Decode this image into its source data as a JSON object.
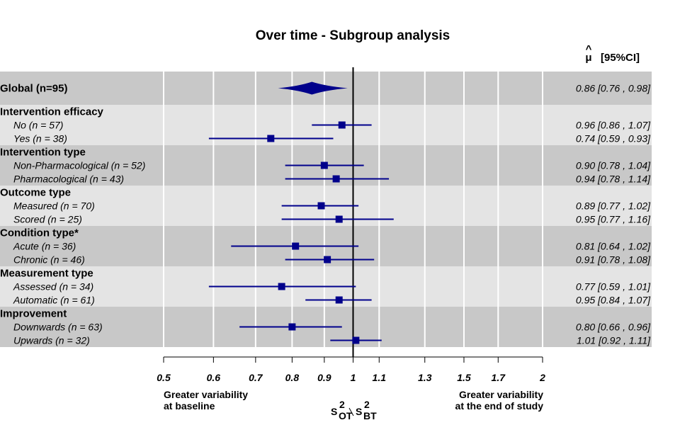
{
  "chart_data": {
    "type": "forest",
    "title": "Over time - Subgroup analysis",
    "estimate_header": "[95%CI]",
    "estimate_symbol": "μ",
    "x_scale": "log",
    "xlim": [
      0.5,
      2
    ],
    "reference_line": 1,
    "x_ticks": [
      "0.5",
      "0.6",
      "0.7",
      "0.8",
      "0.9",
      "1",
      "1.1",
      "1.3",
      "1.5",
      "1.7",
      "2"
    ],
    "x_label": {
      "base": "S",
      "num_sub": "OT",
      "den_sub": "BT",
      "sup": "2"
    },
    "left_note": [
      "Greater variability",
      "at baseline"
    ],
    "right_note": [
      "Greater variability",
      "at the end of study"
    ],
    "marker_color": "#00008B",
    "band_colors": [
      "#C8C8C8",
      "#E4E4E4"
    ],
    "rows": [
      {
        "kind": "global",
        "label": "Global (n=95)",
        "est": 0.86,
        "lo": 0.76,
        "hi": 0.98,
        "text": "0.86  [0.76 , 0.98]",
        "band": 0
      },
      {
        "kind": "group",
        "label": "Intervention efficacy",
        "band": 1
      },
      {
        "kind": "item",
        "label": "No (n = 57)",
        "est": 0.96,
        "lo": 0.86,
        "hi": 1.07,
        "text": "0.96  [0.86 , 1.07]",
        "band": 1
      },
      {
        "kind": "item",
        "label": "Yes (n = 38)",
        "est": 0.74,
        "lo": 0.59,
        "hi": 0.93,
        "text": "0.74  [0.59 , 0.93]",
        "band": 1
      },
      {
        "kind": "group",
        "label": "Intervention type",
        "band": 0
      },
      {
        "kind": "item",
        "label": "Non-Pharmacological (n = 52)",
        "est": 0.9,
        "lo": 0.78,
        "hi": 1.04,
        "text": "0.90  [0.78 , 1.04]",
        "band": 0
      },
      {
        "kind": "item",
        "label": "Pharmacological (n = 43)",
        "est": 0.94,
        "lo": 0.78,
        "hi": 1.14,
        "text": "0.94  [0.78 , 1.14]",
        "band": 0
      },
      {
        "kind": "group",
        "label": "Outcome type",
        "band": 1
      },
      {
        "kind": "item",
        "label": "Measured (n = 70)",
        "est": 0.89,
        "lo": 0.77,
        "hi": 1.02,
        "text": "0.89  [0.77 , 1.02]",
        "band": 1
      },
      {
        "kind": "item",
        "label": "Scored (n = 25)",
        "est": 0.95,
        "lo": 0.77,
        "hi": 1.16,
        "text": "0.95  [0.77 , 1.16]",
        "band": 1
      },
      {
        "kind": "group",
        "label": "Condition type*",
        "band": 0
      },
      {
        "kind": "item",
        "label": "Acute (n = 36)",
        "est": 0.81,
        "lo": 0.64,
        "hi": 1.02,
        "text": "0.81  [0.64 , 1.02]",
        "band": 0
      },
      {
        "kind": "item",
        "label": "Chronic (n = 46)",
        "est": 0.91,
        "lo": 0.78,
        "hi": 1.08,
        "text": "0.91  [0.78 , 1.08]",
        "band": 0
      },
      {
        "kind": "group",
        "label": "Measurement type",
        "band": 1
      },
      {
        "kind": "item",
        "label": "Assessed (n = 34)",
        "est": 0.77,
        "lo": 0.59,
        "hi": 1.01,
        "text": "0.77  [0.59 , 1.01]",
        "band": 1
      },
      {
        "kind": "item",
        "label": "Automatic (n = 61)",
        "est": 0.95,
        "lo": 0.84,
        "hi": 1.07,
        "text": "0.95  [0.84 , 1.07]",
        "band": 1
      },
      {
        "kind": "group",
        "label": "Improvement",
        "band": 0
      },
      {
        "kind": "item",
        "label": "Downwards (n = 63)",
        "est": 0.8,
        "lo": 0.66,
        "hi": 0.96,
        "text": "0.80  [0.66 , 0.96]",
        "band": 0
      },
      {
        "kind": "item",
        "label": "Upwards (n = 32)",
        "est": 1.01,
        "lo": 0.92,
        "hi": 1.11,
        "text": "1.01  [0.92 , 1.11]",
        "band": 0
      }
    ]
  }
}
